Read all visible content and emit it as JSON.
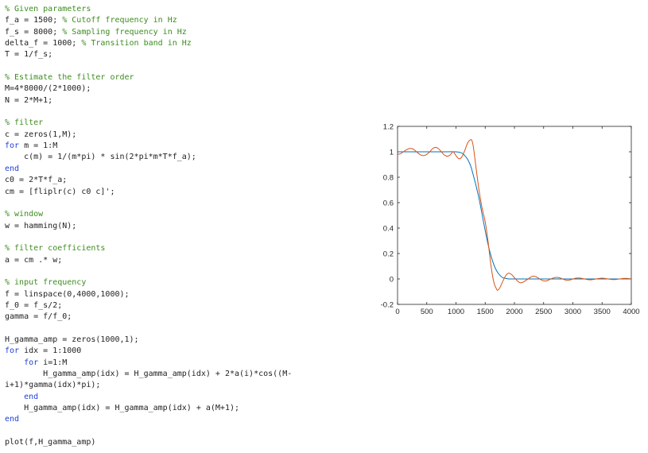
{
  "editor": {
    "lines": [
      {
        "parts": [
          {
            "t": "% Given parameters",
            "k": "comment"
          }
        ]
      },
      {
        "parts": [
          {
            "t": "f_a = 1500; ",
            "k": "code"
          },
          {
            "t": "% Cutoff frequency in Hz",
            "k": "comment"
          }
        ]
      },
      {
        "parts": [
          {
            "t": "f_s = 8000; ",
            "k": "code"
          },
          {
            "t": "% Sampling frequency in Hz",
            "k": "comment"
          }
        ]
      },
      {
        "parts": [
          {
            "t": "delta_f = 1000; ",
            "k": "code"
          },
          {
            "t": "% Transition band in Hz",
            "k": "comment"
          }
        ]
      },
      {
        "parts": [
          {
            "t": "T = 1/f_s;",
            "k": "code"
          }
        ]
      },
      {
        "parts": []
      },
      {
        "parts": [
          {
            "t": "% Estimate the filter order",
            "k": "comment"
          }
        ]
      },
      {
        "parts": [
          {
            "t": "M=4*8000/(2*1000);",
            "k": "code"
          }
        ]
      },
      {
        "parts": [
          {
            "t": "N = 2*M+1;",
            "k": "code"
          }
        ]
      },
      {
        "parts": []
      },
      {
        "parts": [
          {
            "t": "% filter",
            "k": "comment"
          }
        ]
      },
      {
        "parts": [
          {
            "t": "c = zeros(1,M);",
            "k": "code"
          }
        ]
      },
      {
        "parts": [
          {
            "t": "for",
            "k": "keyword"
          },
          {
            "t": " m = 1:M",
            "k": "code"
          }
        ]
      },
      {
        "parts": [
          {
            "t": "    c(m) = 1/(m*pi) * sin(2*pi*m*T*f_a);",
            "k": "code"
          }
        ]
      },
      {
        "parts": [
          {
            "t": "end",
            "k": "keyword"
          }
        ]
      },
      {
        "parts": [
          {
            "t": "c0 = 2*T*f_a;",
            "k": "code"
          }
        ]
      },
      {
        "parts": [
          {
            "t": "cm = [fliplr(c) c0 c]';",
            "k": "code"
          }
        ]
      },
      {
        "parts": []
      },
      {
        "parts": [
          {
            "t": "% window",
            "k": "comment"
          }
        ]
      },
      {
        "parts": [
          {
            "t": "w = hamming(N);",
            "k": "code"
          }
        ]
      },
      {
        "parts": []
      },
      {
        "parts": [
          {
            "t": "% filter coefficients",
            "k": "comment"
          }
        ]
      },
      {
        "parts": [
          {
            "t": "a = cm .* w;",
            "k": "code"
          }
        ]
      },
      {
        "parts": []
      },
      {
        "parts": [
          {
            "t": "% input frequency",
            "k": "comment"
          }
        ]
      },
      {
        "parts": [
          {
            "t": "f = linspace(0,4000,1000);",
            "k": "code"
          }
        ]
      },
      {
        "parts": [
          {
            "t": "f_0 = f_s/2;",
            "k": "code"
          }
        ]
      },
      {
        "parts": [
          {
            "t": "gamma = f/f_0;",
            "k": "code"
          }
        ]
      },
      {
        "parts": []
      },
      {
        "parts": [
          {
            "t": "H_gamma_amp = zeros(1000,1);",
            "k": "code"
          }
        ]
      },
      {
        "parts": [
          {
            "t": "for",
            "k": "keyword"
          },
          {
            "t": " idx = 1:1000",
            "k": "code"
          }
        ]
      },
      {
        "parts": [
          {
            "t": "    ",
            "k": "code"
          },
          {
            "t": "for",
            "k": "keyword"
          },
          {
            "t": " i=1:M",
            "k": "code"
          }
        ]
      },
      {
        "parts": [
          {
            "t": "        H_gamma_amp(idx) = H_gamma_amp(idx) + 2*a(i)*cos((M-",
            "k": "code"
          }
        ]
      },
      {
        "parts": [
          {
            "t": "i+1)*gamma(idx)*pi);",
            "k": "code"
          }
        ]
      },
      {
        "parts": [
          {
            "t": "    ",
            "k": "code"
          },
          {
            "t": "end",
            "k": "keyword"
          }
        ]
      },
      {
        "parts": [
          {
            "t": "    H_gamma_amp(idx) = H_gamma_amp(idx) + a(M+1);",
            "k": "code"
          }
        ]
      },
      {
        "parts": [
          {
            "t": "end",
            "k": "keyword"
          }
        ]
      },
      {
        "parts": []
      },
      {
        "parts": [
          {
            "t": "plot(f,H_gamma_amp)",
            "k": "code"
          }
        ]
      }
    ]
  },
  "chart_data": {
    "type": "line",
    "title": "",
    "xlabel": "",
    "ylabel": "",
    "xlim": [
      0,
      4000
    ],
    "ylim": [
      -0.2,
      1.2
    ],
    "xticks": [
      "0",
      "500",
      "1000",
      "1500",
      "2000",
      "2500",
      "3000",
      "3500",
      "4000"
    ],
    "yticks": [
      "-0.2",
      "0",
      "0.2",
      "0.4",
      "0.6",
      "0.8",
      "1",
      "1.2"
    ],
    "grid": false,
    "series": [
      {
        "color": "#0072BD",
        "x": [
          0,
          250,
          500,
          750,
          1000,
          1100,
          1150,
          1200,
          1250,
          1300,
          1350,
          1400,
          1450,
          1500,
          1550,
          1600,
          1650,
          1700,
          1750,
          1800,
          1850,
          1900,
          1950,
          2000,
          2500,
          3000,
          3500,
          4000
        ],
        "y": [
          1.0,
          1.0,
          1.0,
          1.0,
          1.0,
          0.99,
          0.97,
          0.94,
          0.89,
          0.81,
          0.72,
          0.62,
          0.5,
          0.38,
          0.27,
          0.18,
          0.11,
          0.06,
          0.03,
          0.01,
          0.005,
          0.0,
          0.0,
          0.0,
          0.0,
          0.0,
          0.0,
          0.0
        ]
      },
      {
        "color": "#D95319",
        "x": [
          0,
          50,
          100,
          150,
          200,
          250,
          300,
          350,
          400,
          450,
          500,
          550,
          600,
          650,
          700,
          750,
          800,
          850,
          900,
          950,
          1000,
          1050,
          1100,
          1150,
          1200,
          1250,
          1275,
          1300,
          1350,
          1400,
          1450,
          1500,
          1550,
          1600,
          1650,
          1700,
          1725,
          1750,
          1800,
          1850,
          1900,
          1950,
          2000,
          2050,
          2100,
          2150,
          2200,
          2250,
          2300,
          2350,
          2400,
          2450,
          2500,
          2550,
          2600,
          2650,
          2700,
          2750,
          2800,
          2850,
          2900,
          2950,
          3000,
          3050,
          3100,
          3150,
          3200,
          3250,
          3300,
          3350,
          3400,
          3450,
          3500,
          3550,
          3600,
          3650,
          3700,
          3750,
          3800,
          3850,
          3900,
          3950,
          4000
        ],
        "y": [
          0.98,
          0.985,
          1.0,
          1.015,
          1.025,
          1.025,
          1.01,
          0.99,
          0.975,
          0.97,
          0.98,
          1.0,
          1.025,
          1.035,
          1.025,
          1.0,
          0.975,
          0.965,
          0.975,
          1.0,
          0.97,
          0.945,
          0.96,
          1.01,
          1.07,
          1.095,
          1.085,
          1.03,
          0.85,
          0.68,
          0.55,
          0.45,
          0.29,
          0.1,
          -0.03,
          -0.085,
          -0.085,
          -0.07,
          -0.02,
          0.025,
          0.045,
          0.035,
          0.01,
          -0.015,
          -0.03,
          -0.025,
          -0.01,
          0.005,
          0.02,
          0.02,
          0.01,
          -0.005,
          -0.015,
          -0.015,
          -0.005,
          0.005,
          0.012,
          0.012,
          0.005,
          -0.005,
          -0.01,
          -0.008,
          0.0,
          0.006,
          0.008,
          0.005,
          0.0,
          -0.005,
          -0.007,
          -0.004,
          0.0,
          0.004,
          0.006,
          0.004,
          0.0,
          -0.003,
          -0.005,
          -0.003,
          0.0,
          0.003,
          0.005,
          0.003,
          0.0
        ]
      }
    ]
  }
}
